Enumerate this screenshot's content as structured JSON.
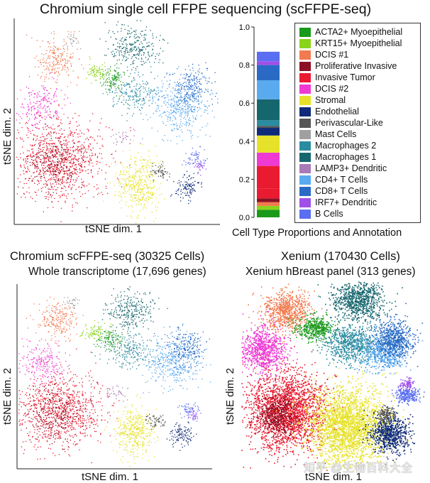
{
  "top_title": "Chromium single cell FFPE sequencing (scFFPE-seq)",
  "legend_caption": "Cell Type Proportions and Annotation",
  "panels": {
    "top": {
      "xlabel": "tSNE dim. 1",
      "ylabel": "tSNE dim. 2"
    },
    "bottom_left": {
      "title": "Chromium scFFPE-seq (30325 Cells)",
      "subtitle": "Whole transcriptome (17,696 genes)",
      "xlabel": "tSNE dim. 1",
      "ylabel": "tSNE dim. 2"
    },
    "bottom_right": {
      "title": "Xenium (170430 Cells)",
      "subtitle": "Xenium hBreast panel (313 genes)",
      "xlabel": "tSNE dim. 1",
      "ylabel": "tSNE dim. 2"
    }
  },
  "cell_types": [
    {
      "name": "ACTA2+ Myoepithelial",
      "color": "#1a9a1a"
    },
    {
      "name": "KRT15+ Myoepithelial",
      "color": "#8ad41a"
    },
    {
      "name": "DCIS #1",
      "color": "#f27a4f"
    },
    {
      "name": "Proliferative Invasive",
      "color": "#8c1024"
    },
    {
      "name": "Invasive Tumor",
      "color": "#ea1a30"
    },
    {
      "name": "DCIS #2",
      "color": "#ee3ad2"
    },
    {
      "name": "Stromal",
      "color": "#e6e22a"
    },
    {
      "name": "Endothelial",
      "color": "#0e2a78"
    },
    {
      "name": "Perivascular-Like",
      "color": "#555555"
    },
    {
      "name": "Mast Cells",
      "color": "#a0a0a0"
    },
    {
      "name": "Macrophages 2",
      "color": "#2a8ca0"
    },
    {
      "name": "Macrophages 1",
      "color": "#16666e"
    },
    {
      "name": "LAMP3+ Dendritic",
      "color": "#a87ab8"
    },
    {
      "name": "CD4+ T Cells",
      "color": "#5aaaf0"
    },
    {
      "name": "CD8+ T Cells",
      "color": "#2a6ac4"
    },
    {
      "name": "IRF7+ Dendritic",
      "color": "#a050e8"
    },
    {
      "name": "B Cells",
      "color": "#5a6ef2"
    }
  ],
  "chart_data": [
    {
      "type": "bar",
      "title": "",
      "xlabel": "Cell Type Proportions and Annotation",
      "ylabel": "",
      "ylim": [
        0,
        1.0
      ],
      "yticks": [
        "0.0",
        "0.2",
        "0.4",
        "0.6",
        "0.8",
        "1.0"
      ],
      "stacked": true,
      "segments": [
        {
          "name": "ACTA2+ Myoepithelial",
          "value": 0.04
        },
        {
          "name": "KRT15+ Myoepithelial",
          "value": 0.02
        },
        {
          "name": "DCIS #1",
          "value": 0.02
        },
        {
          "name": "Proliferative Invasive",
          "value": 0.02
        },
        {
          "name": "Invasive Tumor",
          "value": 0.05
        },
        {
          "name": "Invasive Tumor",
          "value": 0.12
        },
        {
          "name": "DCIS #2",
          "value": 0.07
        },
        {
          "name": "Stromal",
          "value": 0.09
        },
        {
          "name": "Endothelial",
          "value": 0.04
        },
        {
          "name": "Perivascular-Like",
          "value": 0.01
        },
        {
          "name": "Macrophages 2",
          "value": 0.03
        },
        {
          "name": "Macrophages 1",
          "value": 0.11
        },
        {
          "name": "CD4+ T Cells",
          "value": 0.1
        },
        {
          "name": "CD8+ T Cells",
          "value": 0.08
        },
        {
          "name": "IRF7+ Dendritic",
          "value": 0.02
        },
        {
          "name": "B Cells",
          "value": 0.05
        }
      ]
    }
  ],
  "watermark": "知乎 @生物百科大全"
}
